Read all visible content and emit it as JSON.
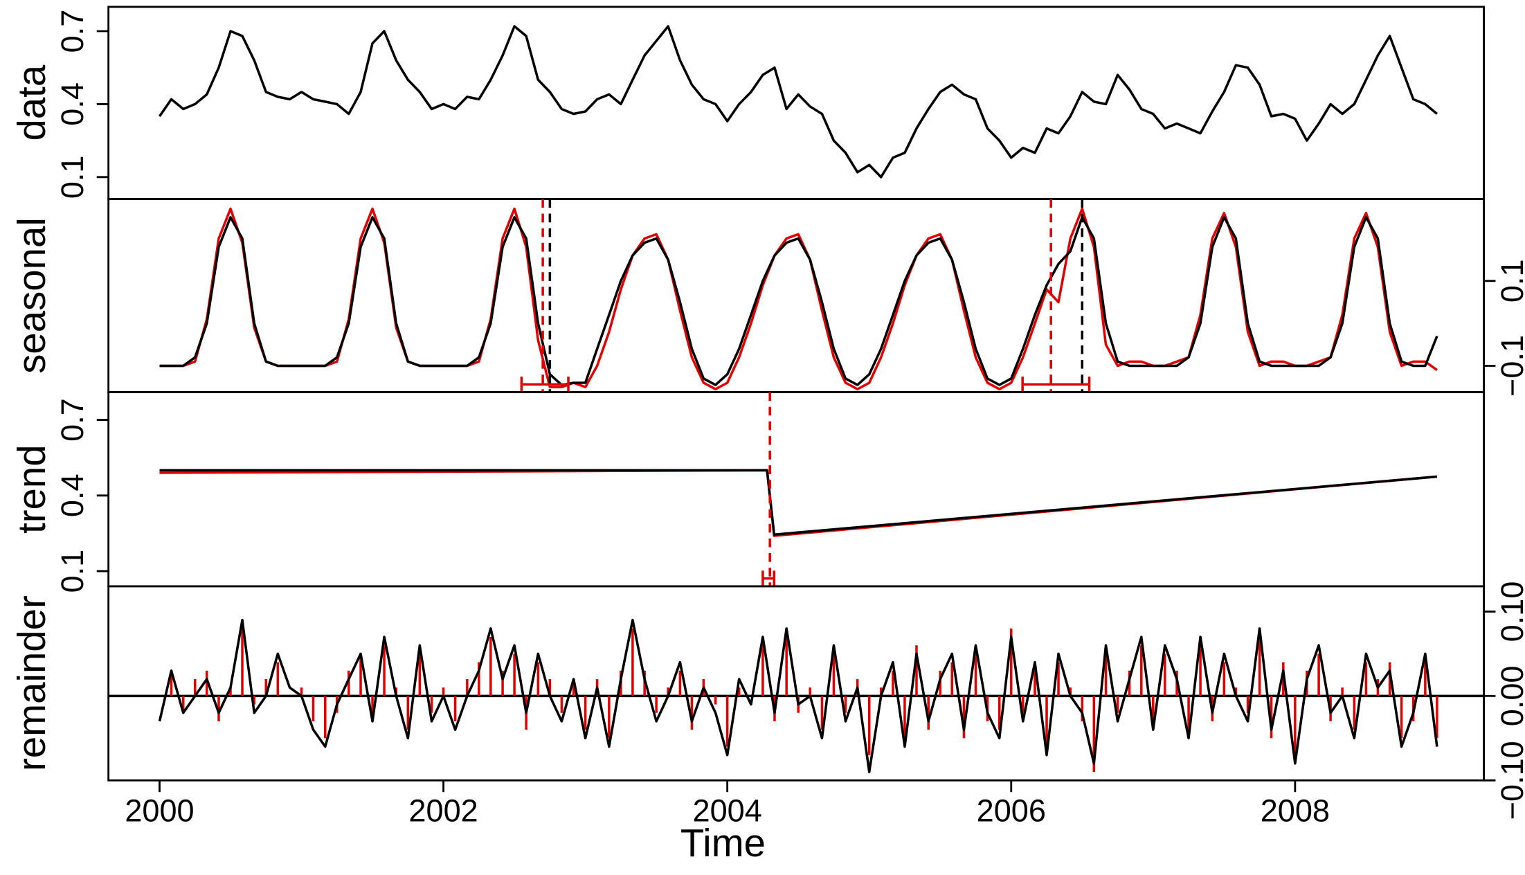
{
  "chart_data": {
    "type": "line",
    "xlabel": "Time",
    "xlim": [
      1999.64,
      2009.33
    ],
    "xticks": [
      2000,
      2002,
      2004,
      2006,
      2008
    ],
    "x": [
      2000,
      2000.083,
      2000.167,
      2000.25,
      2000.333,
      2000.417,
      2000.5,
      2000.583,
      2000.667,
      2000.75,
      2000.833,
      2000.917,
      2001,
      2001.083,
      2001.167,
      2001.25,
      2001.333,
      2001.417,
      2001.5,
      2001.583,
      2001.667,
      2001.75,
      2001.833,
      2001.917,
      2002,
      2002.083,
      2002.167,
      2002.25,
      2002.333,
      2002.417,
      2002.5,
      2002.583,
      2002.667,
      2002.75,
      2002.833,
      2002.917,
      2003,
      2003.083,
      2003.167,
      2003.25,
      2003.333,
      2003.417,
      2003.5,
      2003.583,
      2003.667,
      2003.75,
      2003.833,
      2003.917,
      2004,
      2004.083,
      2004.167,
      2004.25,
      2004.333,
      2004.417,
      2004.5,
      2004.583,
      2004.667,
      2004.75,
      2004.833,
      2004.917,
      2005,
      2005.083,
      2005.167,
      2005.25,
      2005.333,
      2005.417,
      2005.5,
      2005.583,
      2005.667,
      2005.75,
      2005.833,
      2005.917,
      2006,
      2006.083,
      2006.167,
      2006.25,
      2006.333,
      2006.417,
      2006.5,
      2006.583,
      2006.667,
      2006.75,
      2006.833,
      2006.917,
      2007,
      2007.083,
      2007.167,
      2007.25,
      2007.333,
      2007.417,
      2007.5,
      2007.583,
      2007.667,
      2007.75,
      2007.833,
      2007.917,
      2008,
      2008.083,
      2008.167,
      2008.25,
      2008.333,
      2008.417,
      2008.5,
      2008.583,
      2008.667,
      2008.75,
      2008.833,
      2008.917,
      2009
    ],
    "panels": [
      {
        "ylabel": "data",
        "axis_side": "left",
        "ylim": [
          0.01,
          0.8
        ],
        "yticks": [
          0.1,
          0.4,
          0.7
        ],
        "series": [
          {
            "color": "#000000",
            "style": "line",
            "values": [
              0.35,
              0.42,
              0.38,
              0.4,
              0.44,
              0.55,
              0.7,
              0.68,
              0.58,
              0.45,
              0.43,
              0.42,
              0.45,
              0.42,
              0.41,
              0.4,
              0.36,
              0.45,
              0.65,
              0.7,
              0.58,
              0.5,
              0.45,
              0.38,
              0.4,
              0.38,
              0.43,
              0.42,
              0.5,
              0.6,
              0.72,
              0.68,
              0.5,
              0.45,
              0.38,
              0.36,
              0.37,
              0.42,
              0.44,
              0.4,
              0.5,
              0.6,
              0.66,
              0.72,
              0.58,
              0.48,
              0.42,
              0.4,
              0.33,
              0.4,
              0.45,
              0.52,
              0.55,
              0.38,
              0.44,
              0.39,
              0.36,
              0.25,
              0.2,
              0.12,
              0.15,
              0.1,
              0.18,
              0.2,
              0.3,
              0.38,
              0.45,
              0.48,
              0.44,
              0.42,
              0.3,
              0.25,
              0.18,
              0.22,
              0.2,
              0.3,
              0.28,
              0.35,
              0.45,
              0.41,
              0.4,
              0.52,
              0.46,
              0.38,
              0.36,
              0.3,
              0.32,
              0.3,
              0.28,
              0.37,
              0.45,
              0.56,
              0.55,
              0.48,
              0.35,
              0.36,
              0.34,
              0.25,
              0.32,
              0.4,
              0.36,
              0.4,
              0.5,
              0.6,
              0.68,
              0.55,
              0.42,
              0.4,
              0.36
            ]
          }
        ]
      },
      {
        "ylabel": "seasonal",
        "axis_side": "right",
        "ylim": [
          -0.162,
          0.293
        ],
        "yticks": [
          {
            "value": -0.1,
            "label": "−0.1"
          },
          0.1
        ],
        "series": [
          {
            "color": "#e00000",
            "style": "line",
            "values": [
              -0.1,
              -0.1,
              -0.1,
              -0.09,
              0.01,
              0.2,
              0.27,
              0.19,
              -0.01,
              -0.09,
              -0.1,
              -0.1,
              -0.1,
              -0.1,
              -0.1,
              -0.09,
              0.01,
              0.2,
              0.27,
              0.19,
              -0.01,
              -0.09,
              -0.1,
              -0.1,
              -0.1,
              -0.1,
              -0.1,
              -0.09,
              0.01,
              0.2,
              0.27,
              0.18,
              -0.04,
              -0.15,
              -0.15,
              -0.14,
              -0.15,
              -0.1,
              -0.02,
              0.08,
              0.16,
              0.2,
              0.21,
              0.15,
              0.03,
              -0.08,
              -0.14,
              -0.155,
              -0.14,
              -0.08,
              0.0,
              0.09,
              0.16,
              0.2,
              0.21,
              0.15,
              0.03,
              -0.08,
              -0.14,
              -0.155,
              -0.14,
              -0.08,
              0.0,
              0.09,
              0.16,
              0.2,
              0.21,
              0.15,
              0.03,
              -0.08,
              -0.14,
              -0.155,
              -0.14,
              -0.08,
              0.0,
              0.08,
              0.05,
              0.2,
              0.27,
              0.18,
              -0.05,
              -0.1,
              -0.09,
              -0.09,
              -0.1,
              -0.1,
              -0.09,
              -0.08,
              0.02,
              0.2,
              0.26,
              0.18,
              -0.02,
              -0.1,
              -0.09,
              -0.09,
              -0.1,
              -0.1,
              -0.09,
              -0.08,
              0.02,
              0.2,
              0.26,
              0.18,
              -0.02,
              -0.1,
              -0.09,
              -0.09,
              -0.11
            ]
          },
          {
            "color": "#000000",
            "style": "line",
            "values": [
              -0.1,
              -0.1,
              -0.1,
              -0.08,
              0.0,
              0.18,
              0.25,
              0.2,
              0.0,
              -0.09,
              -0.1,
              -0.1,
              -0.1,
              -0.1,
              -0.1,
              -0.08,
              0.0,
              0.18,
              0.25,
              0.2,
              0.0,
              -0.09,
              -0.1,
              -0.1,
              -0.1,
              -0.1,
              -0.1,
              -0.08,
              0.0,
              0.18,
              0.25,
              0.2,
              0.0,
              -0.12,
              -0.145,
              -0.14,
              -0.14,
              -0.06,
              0.02,
              0.1,
              0.16,
              0.19,
              0.2,
              0.15,
              0.05,
              -0.06,
              -0.13,
              -0.145,
              -0.12,
              -0.06,
              0.02,
              0.1,
              0.16,
              0.19,
              0.2,
              0.15,
              0.05,
              -0.06,
              -0.13,
              -0.145,
              -0.12,
              -0.06,
              0.02,
              0.1,
              0.16,
              0.19,
              0.2,
              0.15,
              0.05,
              -0.06,
              -0.13,
              -0.145,
              -0.13,
              -0.06,
              0.02,
              0.09,
              0.14,
              0.17,
              0.25,
              0.2,
              0.0,
              -0.09,
              -0.1,
              -0.1,
              -0.1,
              -0.1,
              -0.1,
              -0.08,
              0.0,
              0.18,
              0.25,
              0.2,
              0.0,
              -0.09,
              -0.1,
              -0.1,
              -0.1,
              -0.1,
              -0.1,
              -0.08,
              0.0,
              0.18,
              0.25,
              0.2,
              0.0,
              -0.09,
              -0.1,
              -0.1,
              -0.03
            ]
          }
        ],
        "breakpoints": [
          {
            "x": 2002.7,
            "color": "#e00000"
          },
          {
            "x": 2002.75,
            "color": "#000000"
          },
          {
            "x": 2006.28,
            "color": "#e00000"
          },
          {
            "x": 2006.5,
            "color": "#000000"
          }
        ],
        "intervals": [
          {
            "low": 2002.55,
            "high": 2002.88,
            "color": "#e00000"
          },
          {
            "low": 2006.08,
            "high": 2006.55,
            "color": "#e00000"
          }
        ]
      },
      {
        "ylabel": "trend",
        "axis_side": "left",
        "ylim": [
          0.04,
          0.81
        ],
        "yticks": [
          0.1,
          0.4,
          0.7
        ],
        "series": [
          {
            "color": "#e00000",
            "style": "line",
            "x": [
              2000,
              2004.28,
              2004.33,
              2009
            ],
            "values": [
              0.49,
              0.5,
              0.24,
              0.475
            ]
          },
          {
            "color": "#000000",
            "style": "line",
            "x": [
              2000,
              2004.28,
              2004.33,
              2009
            ],
            "values": [
              0.5,
              0.5,
              0.245,
              0.475
            ]
          }
        ],
        "breakpoints": [
          {
            "x": 2004.3,
            "color": "#e00000"
          }
        ],
        "intervals": [
          {
            "low": 2004.25,
            "high": 2004.33,
            "color": "#e00000"
          }
        ]
      },
      {
        "ylabel": "remainder",
        "axis_side": "right",
        "ylim": [
          -0.1,
          0.13
        ],
        "yticks": [
          {
            "value": -0.1,
            "label": "−0.10"
          },
          {
            "value": 0,
            "label": "0.00"
          },
          {
            "value": 0.1,
            "label": "0.10"
          }
        ],
        "series": [
          {
            "color": "#e00000",
            "style": "spike",
            "values": [
              0.0,
              0.03,
              -0.02,
              0.02,
              0.03,
              -0.03,
              0.01,
              0.08,
              -0.01,
              0.02,
              0.04,
              0.0,
              0.01,
              -0.03,
              -0.05,
              -0.02,
              0.03,
              0.05,
              -0.02,
              0.06,
              0.01,
              -0.04,
              0.05,
              -0.02,
              0.01,
              -0.03,
              0.02,
              0.04,
              0.07,
              0.03,
              0.05,
              -0.04,
              0.04,
              0.02,
              -0.02,
              0.02,
              -0.04,
              0.02,
              -0.05,
              0.03,
              0.08,
              0.03,
              -0.02,
              0.01,
              0.03,
              -0.04,
              0.02,
              -0.01,
              -0.06,
              0.01,
              0.0,
              0.06,
              -0.03,
              0.07,
              -0.02,
              0.01,
              -0.04,
              0.05,
              -0.02,
              0.02,
              -0.07,
              0.01,
              0.03,
              -0.05,
              0.06,
              -0.04,
              0.03,
              0.04,
              -0.05,
              0.05,
              -0.03,
              -0.04,
              0.08,
              -0.02,
              0.03,
              -0.06,
              0.04,
              0.01,
              -0.03,
              -0.09,
              0.05,
              -0.02,
              0.03,
              0.06,
              -0.03,
              0.05,
              0.03,
              -0.04,
              0.06,
              -0.03,
              0.04,
              0.01,
              -0.02,
              0.07,
              -0.05,
              0.04,
              -0.07,
              0.03,
              0.05,
              -0.03,
              0.01,
              -0.04,
              0.04,
              0.02,
              0.04,
              -0.05,
              -0.03,
              0.04,
              -0.05
            ]
          },
          {
            "color": "#000000",
            "style": "line",
            "values": [
              -0.03,
              0.03,
              -0.02,
              0.0,
              0.02,
              -0.02,
              0.01,
              0.09,
              -0.02,
              0.0,
              0.05,
              0.01,
              0.0,
              -0.04,
              -0.06,
              -0.01,
              0.02,
              0.05,
              -0.03,
              0.07,
              0.0,
              -0.05,
              0.06,
              -0.03,
              0.0,
              -0.04,
              0.0,
              0.03,
              0.08,
              0.02,
              0.06,
              -0.02,
              0.05,
              0.0,
              -0.03,
              0.02,
              -0.05,
              0.01,
              -0.06,
              0.02,
              0.09,
              0.02,
              -0.03,
              0.0,
              0.04,
              -0.03,
              0.01,
              -0.02,
              -0.07,
              0.02,
              -0.01,
              0.07,
              -0.02,
              0.08,
              -0.01,
              0.0,
              -0.05,
              0.06,
              -0.03,
              0.01,
              -0.09,
              0.0,
              0.04,
              -0.06,
              0.05,
              -0.03,
              0.02,
              0.05,
              -0.04,
              0.06,
              -0.02,
              -0.05,
              0.07,
              -0.03,
              0.04,
              -0.07,
              0.05,
              0.0,
              -0.02,
              -0.08,
              0.06,
              -0.03,
              0.02,
              0.07,
              -0.04,
              0.06,
              0.02,
              -0.05,
              0.07,
              -0.02,
              0.05,
              0.0,
              -0.03,
              0.08,
              -0.04,
              0.03,
              -0.08,
              0.02,
              0.06,
              -0.02,
              0.0,
              -0.05,
              0.05,
              0.01,
              0.03,
              -0.06,
              -0.02,
              0.05,
              -0.06
            ]
          }
        ]
      }
    ]
  }
}
